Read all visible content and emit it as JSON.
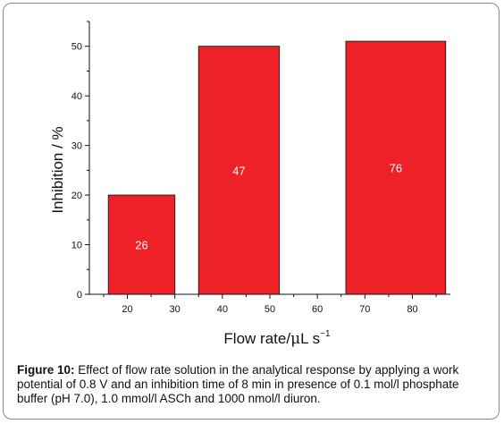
{
  "chart_data": {
    "type": "bar",
    "x_ticks": [
      20,
      30,
      40,
      50,
      60,
      70,
      80
    ],
    "xlim": [
      12,
      88
    ],
    "ylim": [
      0,
      55
    ],
    "y_ticks": [
      0,
      10,
      20,
      30,
      40,
      50
    ],
    "bars": [
      {
        "x_start": 16,
        "x_end": 30,
        "value": 20,
        "label": "26"
      },
      {
        "x_start": 35,
        "x_end": 52,
        "value": 50,
        "label": "47"
      },
      {
        "x_start": 66,
        "x_end": 87,
        "value": 51,
        "label": "76"
      }
    ],
    "ylabel": "Inhibition / %",
    "xlabel_main": "Flow rate/",
    "xlabel_mu": "μ",
    "xlabel_unit": "L s",
    "xlabel_exp": "−1",
    "bar_color": "#ee2128",
    "grid": false
  },
  "caption": {
    "label": "Figure 10:",
    "text": " Effect of flow rate solution in the analytical response by applying a work potential of 0.8 V and an inhibition time of 8 min in presence of 0.1 mol/l phosphate buffer (pH 7.0), 1.0 mmol/l ASCh and 1000 nmol/l diuron."
  }
}
